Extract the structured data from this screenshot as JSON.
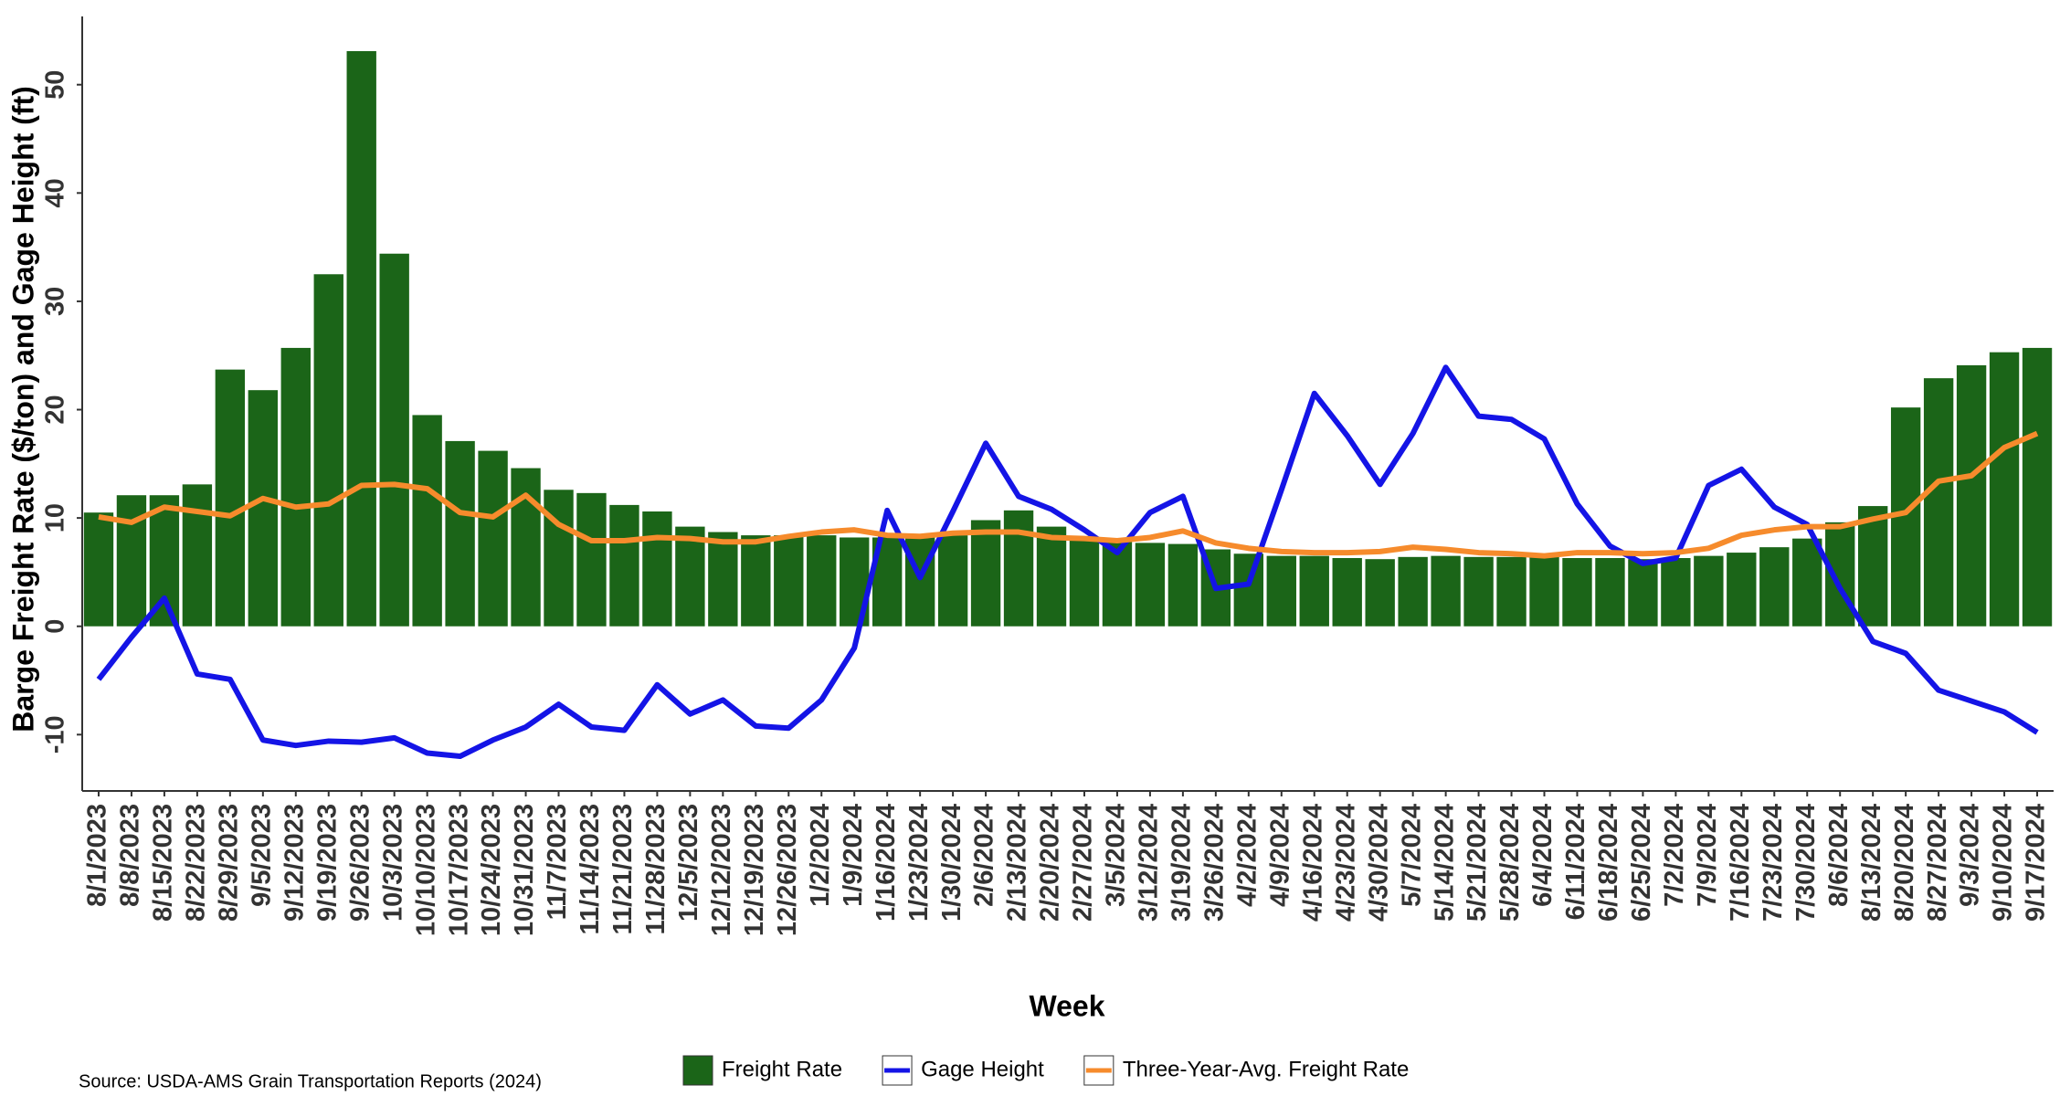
{
  "chart_data": {
    "type": "bar",
    "x_label": "Week",
    "y_label": "Barge Freight Rate ($/ton) and Gage Height (ft)",
    "source": "Source: USDA-AMS Grain Transportation Reports (2024)",
    "categories": [
      "8/1/2023",
      "8/8/2023",
      "8/15/2023",
      "8/22/2023",
      "8/29/2023",
      "9/5/2023",
      "9/12/2023",
      "9/19/2023",
      "9/26/2023",
      "10/3/2023",
      "10/10/2023",
      "10/17/2023",
      "10/24/2023",
      "10/31/2023",
      "11/7/2023",
      "11/14/2023",
      "11/21/2023",
      "11/28/2023",
      "12/5/2023",
      "12/12/2023",
      "12/19/2023",
      "12/26/2023",
      "1/2/2024",
      "1/9/2024",
      "1/16/2024",
      "1/23/2024",
      "1/30/2024",
      "2/6/2024",
      "2/13/2024",
      "2/20/2024",
      "2/27/2024",
      "3/5/2024",
      "3/12/2024",
      "3/19/2024",
      "3/26/2024",
      "4/2/2024",
      "4/9/2024",
      "4/16/2024",
      "4/23/2024",
      "4/30/2024",
      "5/7/2024",
      "5/14/2024",
      "5/21/2024",
      "5/28/2024",
      "6/4/2024",
      "6/11/2024",
      "6/18/2024",
      "6/25/2024",
      "7/2/2024",
      "7/9/2024",
      "7/16/2024",
      "7/23/2024",
      "7/30/2024",
      "8/6/2024",
      "8/13/2024",
      "8/20/2024",
      "8/27/2024",
      "9/3/2024",
      "9/10/2024",
      "9/17/2024"
    ],
    "series": [
      {
        "name": "Freight Rate",
        "type": "bar",
        "color": "#1b6518",
        "values": [
          10.5,
          12.1,
          12.1,
          13.1,
          23.7,
          21.8,
          25.7,
          32.5,
          53.1,
          34.4,
          19.5,
          17.1,
          16.2,
          14.6,
          12.6,
          12.3,
          11.2,
          10.6,
          9.2,
          8.7,
          8.4,
          8.4,
          8.4,
          8.2,
          8.2,
          8.2,
          8.4,
          9.8,
          10.7,
          9.2,
          8.2,
          7.8,
          7.7,
          7.6,
          7.1,
          6.7,
          6.5,
          6.5,
          6.3,
          6.2,
          6.4,
          6.5,
          6.4,
          6.4,
          6.4,
          6.3,
          6.3,
          6.2,
          6.3,
          6.5,
          6.8,
          7.3,
          8.1,
          9.6,
          11.1,
          20.2,
          22.9,
          24.1,
          25.3,
          25.7
        ]
      },
      {
        "name": "Gage Height",
        "type": "line",
        "color": "#1414e6",
        "values": [
          -4.9,
          -1.0,
          2.6,
          -4.4,
          -4.9,
          -10.5,
          -11.0,
          -10.6,
          -10.7,
          -10.3,
          -11.7,
          -12.0,
          -10.5,
          -9.3,
          -7.2,
          -9.3,
          -9.6,
          -5.4,
          -8.1,
          -6.8,
          -9.2,
          -9.4,
          -6.8,
          -2.0,
          10.7,
          4.5,
          10.6,
          16.9,
          12.0,
          10.8,
          8.9,
          6.8,
          10.5,
          12.0,
          3.5,
          3.9,
          12.6,
          21.5,
          17.6,
          13.1,
          17.8,
          23.9,
          19.4,
          19.1,
          17.3,
          11.3,
          7.4,
          5.8,
          6.3,
          13.0,
          14.5,
          11.0,
          9.4,
          3.5,
          -1.4,
          -2.5,
          -5.9,
          -6.9,
          -7.9,
          -9.8
        ]
      },
      {
        "name": "Three-Year-Avg. Freight Rate",
        "type": "line",
        "color": "#f68b2c",
        "values": [
          10.1,
          9.6,
          11.0,
          10.6,
          10.2,
          11.8,
          11.0,
          11.3,
          13.0,
          13.1,
          12.7,
          10.5,
          10.1,
          12.1,
          9.4,
          7.9,
          7.9,
          8.2,
          8.1,
          7.8,
          7.8,
          8.3,
          8.7,
          8.9,
          8.4,
          8.3,
          8.6,
          8.7,
          8.7,
          8.2,
          8.1,
          7.9,
          8.2,
          8.8,
          7.7,
          7.2,
          6.9,
          6.8,
          6.8,
          6.9,
          7.3,
          7.1,
          6.8,
          6.7,
          6.5,
          6.8,
          6.8,
          6.7,
          6.8,
          7.2,
          8.4,
          8.9,
          9.2,
          9.2,
          9.9,
          10.5,
          13.4,
          13.9,
          16.5,
          17.8
        ]
      }
    ],
    "ylim": [
      -15.2,
      56.3
    ],
    "yticks": [
      -10,
      0,
      10,
      20,
      30,
      40,
      50
    ],
    "grid": false
  }
}
